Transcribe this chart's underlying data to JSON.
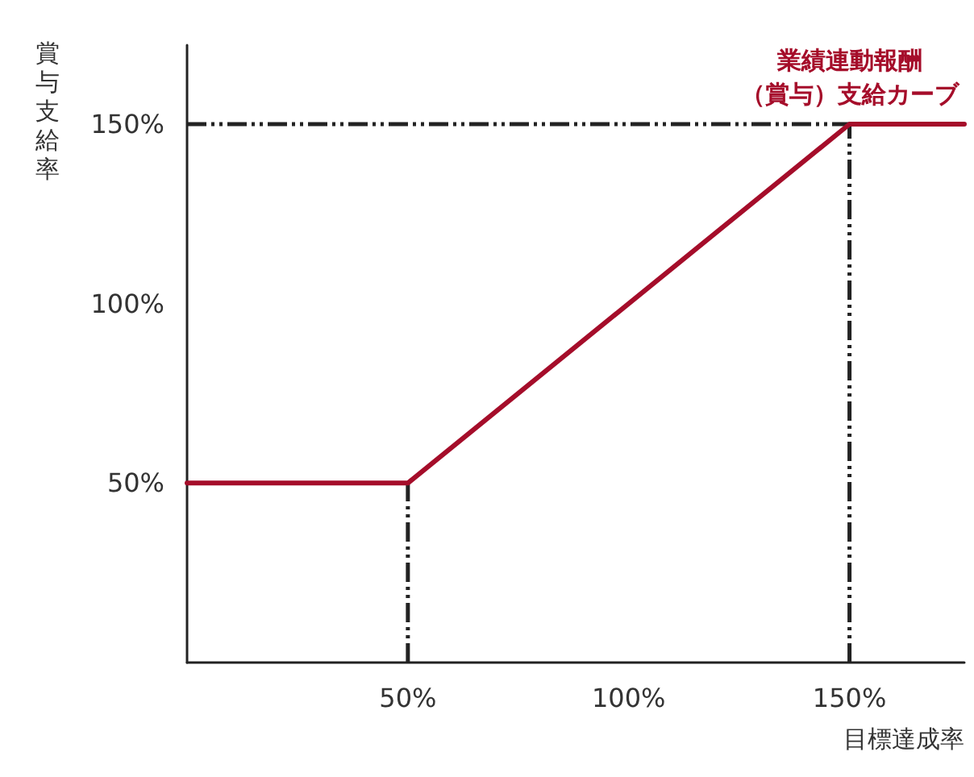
{
  "chart_data": {
    "type": "line",
    "xlabel": "目標達成率",
    "ylabel": "賞与支給率",
    "x": [
      0,
      50,
      150,
      176
    ],
    "series": [
      {
        "name": "業績連動報酬（賞与）支給カーブ",
        "color": "#a50d2a",
        "values": [
          50,
          50,
          150,
          150
        ]
      }
    ],
    "xlim": [
      0,
      176
    ],
    "ylim": [
      0,
      172
    ],
    "xticks": [
      {
        "value": 50,
        "label": "50%"
      },
      {
        "value": 100,
        "label": "100%"
      },
      {
        "value": 150,
        "label": "150%"
      }
    ],
    "yticks": [
      {
        "value": 50,
        "label": "50%"
      },
      {
        "value": 100,
        "label": "100%"
      },
      {
        "value": 150,
        "label": "150%"
      }
    ],
    "ref_lines": [
      {
        "axis": "y",
        "value": 150,
        "color": "#222222",
        "line_style": "dashdot"
      },
      {
        "axis": "x",
        "value": 50,
        "color": "#222222",
        "line_style": "dashdot"
      },
      {
        "axis": "x",
        "value": 150,
        "color": "#222222",
        "line_style": "dashdot"
      }
    ],
    "grid": false,
    "legend": false,
    "marker": "none",
    "line_style": "solid"
  }
}
